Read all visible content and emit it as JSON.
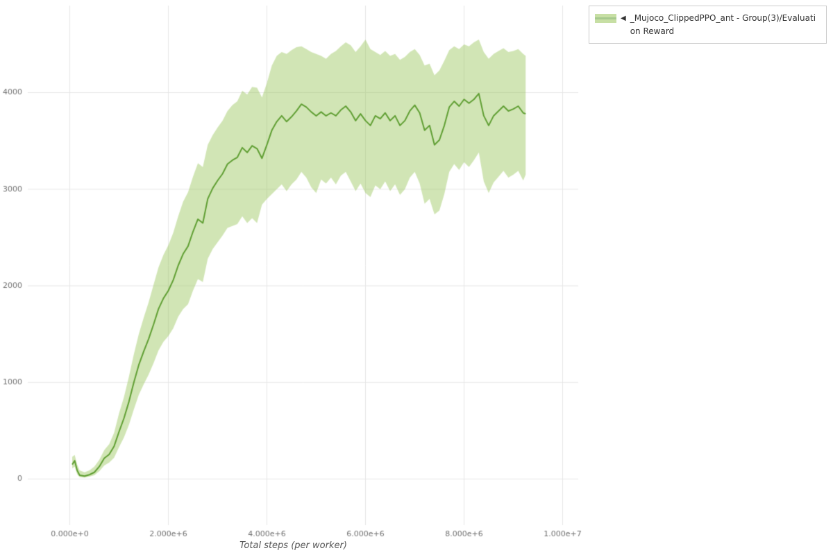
{
  "figure": {
    "background_color": "#ffffff",
    "grid_color": "#e6e6e6",
    "tick_label_color": "#707070",
    "axis_title_color": "#555555"
  },
  "legend": {
    "marker": "◀",
    "label": "_Mujoco_ClippedPPO_ant - Group(3)/Evaluation Reward",
    "line_color": "#5f9e32",
    "band_color": "#9ac55b",
    "band_opacity": 0.45,
    "border_color": "#cbcbcb",
    "position": "top-right-outside"
  },
  "chart_data": {
    "type": "line",
    "title": "",
    "xlabel": "Total steps (per worker)",
    "ylabel": "",
    "grid": true,
    "x_unit": 1000000,
    "xlim": [
      0,
      10000000
    ],
    "ylim": [
      0,
      4900
    ],
    "x_ticks": [
      {
        "value": 0,
        "label": "0.000e+0"
      },
      {
        "value": 2,
        "label": "2.000e+6"
      },
      {
        "value": 4,
        "label": "4.000e+6"
      },
      {
        "value": 6,
        "label": "6.000e+6"
      },
      {
        "value": 8,
        "label": "8.000e+6"
      },
      {
        "value": 10,
        "label": "1.000e+7"
      }
    ],
    "y_ticks": [
      {
        "value": 0,
        "label": "0"
      },
      {
        "value": 1000,
        "label": "1000"
      },
      {
        "value": 2000,
        "label": "2000"
      },
      {
        "value": 3000,
        "label": "3000"
      },
      {
        "value": 4000,
        "label": "4000"
      }
    ],
    "series": [
      {
        "name": "_Mujoco_ClippedPPO_ant - Group(3)/Evaluation Reward",
        "x_millions": [
          0.05,
          0.1,
          0.15,
          0.2,
          0.3,
          0.4,
          0.5,
          0.6,
          0.7,
          0.8,
          0.9,
          1.0,
          1.1,
          1.2,
          1.3,
          1.4,
          1.5,
          1.6,
          1.7,
          1.8,
          1.9,
          2.0,
          2.1,
          2.2,
          2.3,
          2.4,
          2.5,
          2.6,
          2.7,
          2.8,
          2.9,
          3.0,
          3.1,
          3.2,
          3.3,
          3.4,
          3.5,
          3.6,
          3.7,
          3.8,
          3.9,
          4.0,
          4.1,
          4.2,
          4.3,
          4.4,
          4.5,
          4.6,
          4.7,
          4.8,
          4.9,
          5.0,
          5.1,
          5.2,
          5.3,
          5.4,
          5.5,
          5.6,
          5.7,
          5.8,
          5.9,
          6.0,
          6.1,
          6.2,
          6.3,
          6.4,
          6.5,
          6.6,
          6.7,
          6.8,
          6.9,
          7.0,
          7.1,
          7.2,
          7.3,
          7.4,
          7.5,
          7.6,
          7.7,
          7.8,
          7.9,
          8.0,
          8.1,
          8.2,
          8.3,
          8.4,
          8.5,
          8.6,
          8.7,
          8.8,
          8.9,
          9.0,
          9.1,
          9.2,
          9.25
        ],
        "mean": [
          150,
          190,
          90,
          40,
          30,
          45,
          70,
          130,
          215,
          255,
          340,
          490,
          630,
          800,
          1000,
          1180,
          1320,
          1450,
          1600,
          1760,
          1870,
          1950,
          2060,
          2210,
          2330,
          2410,
          2560,
          2690,
          2650,
          2900,
          3010,
          3090,
          3160,
          3260,
          3300,
          3330,
          3430,
          3380,
          3450,
          3420,
          3320,
          3460,
          3610,
          3700,
          3760,
          3700,
          3750,
          3810,
          3880,
          3850,
          3800,
          3760,
          3800,
          3760,
          3790,
          3760,
          3820,
          3860,
          3800,
          3710,
          3780,
          3710,
          3660,
          3760,
          3730,
          3790,
          3710,
          3760,
          3660,
          3710,
          3810,
          3870,
          3790,
          3610,
          3660,
          3460,
          3510,
          3660,
          3850,
          3910,
          3860,
          3930,
          3890,
          3930,
          3990,
          3760,
          3660,
          3760,
          3810,
          3860,
          3810,
          3830,
          3860,
          3790,
          3780
        ],
        "lower": [
          110,
          130,
          50,
          20,
          15,
          25,
          40,
          80,
          140,
          170,
          220,
          330,
          430,
          560,
          720,
          870,
          980,
          1080,
          1200,
          1330,
          1420,
          1480,
          1560,
          1680,
          1760,
          1810,
          1950,
          2070,
          2040,
          2280,
          2380,
          2450,
          2520,
          2600,
          2620,
          2640,
          2720,
          2650,
          2700,
          2650,
          2840,
          2900,
          2950,
          3000,
          3050,
          2980,
          3050,
          3100,
          3180,
          3120,
          3020,
          2960,
          3100,
          3060,
          3120,
          3050,
          3140,
          3180,
          3080,
          2980,
          3060,
          2960,
          2920,
          3040,
          3000,
          3080,
          2980,
          3050,
          2940,
          3000,
          3120,
          3180,
          3060,
          2850,
          2900,
          2740,
          2780,
          2950,
          3180,
          3260,
          3200,
          3280,
          3230,
          3300,
          3380,
          3080,
          2960,
          3070,
          3130,
          3190,
          3120,
          3150,
          3190,
          3090,
          3150
        ],
        "upper": [
          230,
          250,
          150,
          90,
          70,
          90,
          130,
          200,
          300,
          360,
          480,
          680,
          850,
          1060,
          1290,
          1500,
          1670,
          1830,
          2010,
          2190,
          2320,
          2420,
          2550,
          2720,
          2870,
          2970,
          3130,
          3270,
          3230,
          3460,
          3560,
          3640,
          3710,
          3810,
          3870,
          3910,
          4020,
          3980,
          4060,
          4050,
          3950,
          4100,
          4280,
          4380,
          4420,
          4400,
          4440,
          4470,
          4480,
          4450,
          4420,
          4400,
          4380,
          4350,
          4400,
          4430,
          4480,
          4520,
          4490,
          4420,
          4480,
          4550,
          4450,
          4420,
          4390,
          4430,
          4380,
          4400,
          4340,
          4370,
          4420,
          4450,
          4390,
          4280,
          4300,
          4180,
          4230,
          4330,
          4440,
          4480,
          4450,
          4500,
          4480,
          4520,
          4550,
          4420,
          4350,
          4400,
          4430,
          4460,
          4420,
          4430,
          4450,
          4400,
          4380
        ]
      }
    ]
  }
}
